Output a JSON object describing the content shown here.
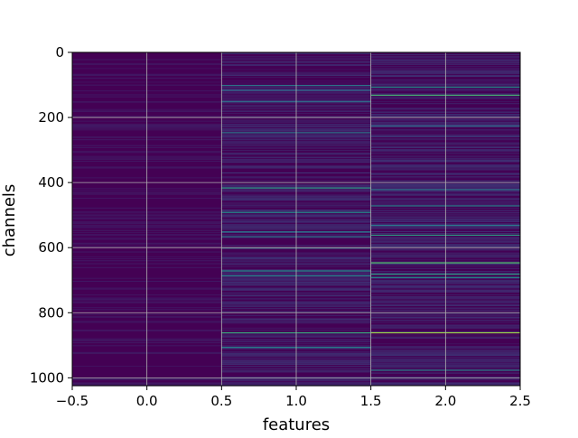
{
  "chart_data": {
    "type": "heatmap",
    "title": "",
    "xlabel": "features",
    "ylabel": "channels",
    "xlim": [
      -0.5,
      2.5
    ],
    "ylim": [
      1024,
      0
    ],
    "y_inverted": true,
    "x_ticks": [
      -0.5,
      0.0,
      0.5,
      1.0,
      1.5,
      2.0,
      2.5
    ],
    "x_tick_labels": [
      "−0.5",
      "0.0",
      "0.5",
      "1.0",
      "1.5",
      "2.0",
      "2.5"
    ],
    "y_ticks": [
      0,
      200,
      400,
      600,
      800,
      1000
    ],
    "y_tick_labels": [
      "0",
      "200",
      "400",
      "600",
      "800",
      "1000"
    ],
    "grid": true,
    "colormap": "viridis",
    "columns": [
      0,
      1,
      2
    ],
    "rows": 1024,
    "background_color": "#440154",
    "highlights": [
      {
        "column": 1,
        "channels": [
          100,
          115,
          150,
          245,
          415,
          490,
          550,
          565,
          600,
          670,
          685,
          860,
          905
        ],
        "levels": [
          0.4,
          0.35,
          0.35,
          0.4,
          0.55,
          0.5,
          0.4,
          0.4,
          0.35,
          0.5,
          0.45,
          0.6,
          0.45
        ]
      },
      {
        "column": 2,
        "channels": [
          105,
          130,
          225,
          420,
          470,
          530,
          560,
          645,
          680,
          690,
          860,
          975
        ],
        "levels": [
          0.5,
          0.65,
          0.35,
          0.4,
          0.45,
          0.4,
          0.55,
          0.7,
          0.55,
          0.5,
          0.85,
          0.45
        ]
      }
    ]
  }
}
